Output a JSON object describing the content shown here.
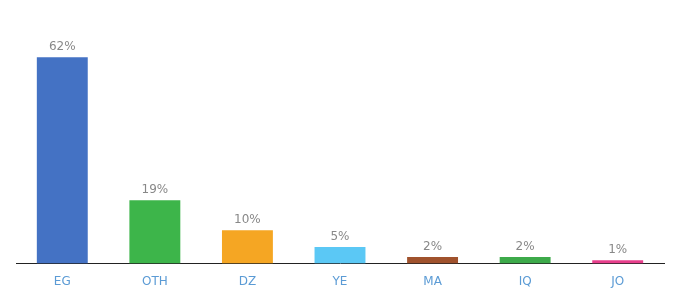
{
  "chart_data": {
    "type": "bar",
    "categories": [
      "EG",
      "OTH",
      "DZ",
      "YE",
      "MA",
      "IQ",
      "JO"
    ],
    "values": [
      62,
      19,
      10,
      5,
      2,
      2,
      1
    ],
    "value_labels": [
      "62%",
      "19%",
      "10%",
      "5%",
      "2%",
      "2%",
      "1%"
    ],
    "colors": [
      "#4472c4",
      "#3db54a",
      "#f5a623",
      "#5bc8f5",
      "#a0522d",
      "#3daa4a",
      "#e83e8c"
    ],
    "ylim": [
      0,
      72
    ],
    "grid": false,
    "data_labels": true,
    "tick_labels": "x"
  }
}
